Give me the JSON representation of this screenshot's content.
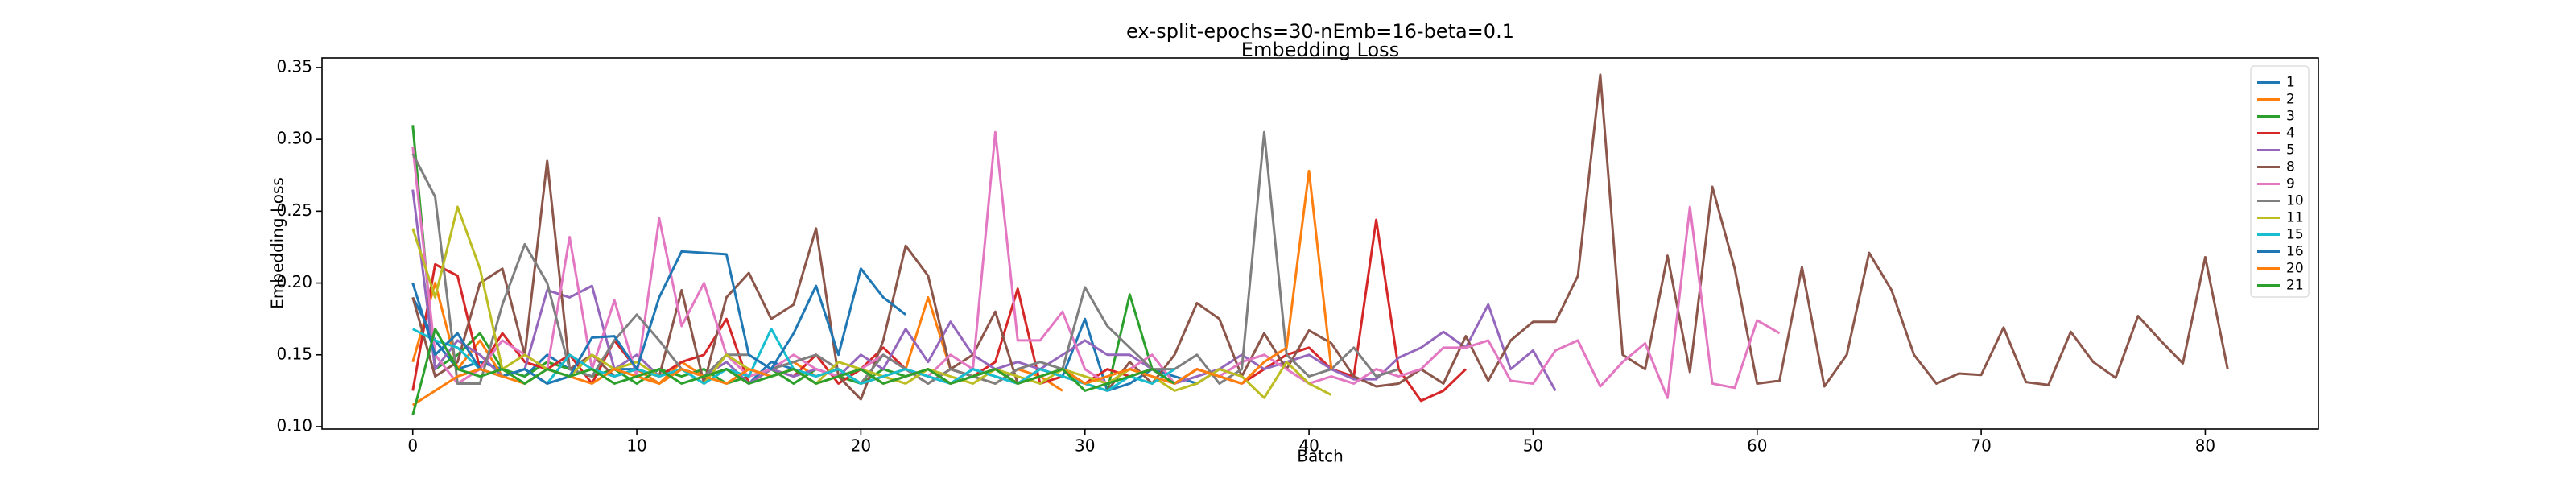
{
  "chart_data": {
    "type": "line",
    "title": "ex-split-epochs=30-nEmb=16-beta=0.1",
    "subtitle": "Embedding Loss",
    "x_label": "Batch",
    "y_label": "Embedding Loss",
    "xlim": [
      -4.05,
      85.05
    ],
    "ylim": [
      0.0983,
      0.3567
    ],
    "xticks": [
      0,
      10,
      20,
      30,
      40,
      50,
      60,
      70,
      80
    ],
    "yticks": [
      {
        "value": 0.1,
        "label": "0.10"
      },
      0.15,
      {
        "value": 0.2,
        "label": "0.20"
      },
      0.25,
      {
        "value": 0.3,
        "label": "0.30"
      },
      0.35
    ],
    "grid": false,
    "legend": "upper right",
    "series": [
      {
        "name": "1",
        "color": "#1f77b4",
        "values": [
          0.19,
          0.16,
          0.14,
          0.145,
          0.14,
          0.135,
          0.15,
          0.14,
          0.135,
          0.14,
          0.14,
          0.13,
          0.14,
          0.135,
          0.14,
          0.13,
          0.145,
          0.14,
          0.135,
          0.14,
          0.13,
          0.135,
          0.14,
          0.135,
          0.13,
          0.14,
          0.135,
          0.13,
          0.14,
          0.135,
          0.175,
          0.125,
          0.13,
          0.14,
          0.135,
          0.13,
          0.14
        ]
      },
      {
        "name": "2",
        "color": "#ff7f0e",
        "values": [
          0.145,
          0.2,
          0.14,
          0.16,
          0.135,
          0.14,
          0.13,
          0.15,
          0.14,
          0.135,
          0.14,
          0.13,
          0.145,
          0.135,
          0.14,
          0.13,
          0.14,
          0.145,
          0.135,
          0.14,
          0.13,
          0.135,
          0.14,
          0.19,
          0.14,
          0.135,
          0.13,
          0.14,
          0.135,
          0.125
        ]
      },
      {
        "name": "3",
        "color": "#2ca02c",
        "values": [
          0.31,
          0.14,
          0.15,
          0.165,
          0.14,
          0.135,
          0.145,
          0.14,
          0.135,
          0.14,
          0.13,
          0.14,
          0.135,
          0.14,
          0.13,
          0.135,
          0.14,
          0.13,
          0.14,
          0.135,
          0.13,
          0.14,
          0.135,
          0.14,
          0.13,
          0.135,
          0.14,
          0.13,
          0.135,
          0.14,
          0.13,
          0.125,
          0.192,
          0.14,
          0.13,
          0.14
        ]
      },
      {
        "name": "4",
        "color": "#d62728",
        "values": [
          0.125,
          0.213,
          0.205,
          0.14,
          0.165,
          0.145,
          0.14,
          0.15,
          0.13,
          0.16,
          0.14,
          0.135,
          0.145,
          0.15,
          0.175,
          0.13,
          0.14,
          0.135,
          0.15,
          0.13,
          0.14,
          0.155,
          0.14,
          0.13,
          0.14,
          0.135,
          0.145,
          0.196,
          0.13,
          0.135,
          0.13,
          0.14,
          0.135,
          0.14,
          0.13,
          0.14,
          0.135,
          0.13,
          0.14,
          0.15,
          0.155,
          0.14,
          0.135,
          0.244,
          0.14,
          0.118,
          0.125,
          0.14
        ]
      },
      {
        "name": "5",
        "color": "#9467bd",
        "values": [
          0.265,
          0.14,
          0.16,
          0.15,
          0.135,
          0.14,
          0.195,
          0.19,
          0.198,
          0.14,
          0.15,
          0.135,
          0.14,
          0.135,
          0.145,
          0.13,
          0.14,
          0.135,
          0.14,
          0.135,
          0.15,
          0.14,
          0.168,
          0.145,
          0.173,
          0.15,
          0.14,
          0.145,
          0.14,
          0.15,
          0.16,
          0.15,
          0.15,
          0.14,
          0.13,
          0.135,
          0.14,
          0.15,
          0.14,
          0.145,
          0.15,
          0.14,
          0.133,
          0.133,
          0.148,
          0.155,
          0.166,
          0.155,
          0.185,
          0.14,
          0.153,
          0.125
        ]
      },
      {
        "name": "8",
        "color": "#8c564b",
        "values": [
          0.19,
          0.135,
          0.145,
          0.2,
          0.21,
          0.15,
          0.285,
          0.14,
          0.15,
          0.135,
          0.14,
          0.135,
          0.195,
          0.13,
          0.19,
          0.207,
          0.175,
          0.185,
          0.238,
          0.135,
          0.119,
          0.16,
          0.226,
          0.205,
          0.14,
          0.15,
          0.18,
          0.13,
          0.14,
          0.135,
          0.13,
          0.125,
          0.145,
          0.13,
          0.15,
          0.186,
          0.175,
          0.135,
          0.165,
          0.14,
          0.167,
          0.158,
          0.135,
          0.128,
          0.13,
          0.14,
          0.13,
          0.163,
          0.132,
          0.16,
          0.173,
          0.173,
          0.205,
          0.345,
          0.15,
          0.14,
          0.219,
          0.138,
          0.267,
          0.21,
          0.13,
          0.132,
          0.211,
          0.128,
          0.15,
          0.221,
          0.195,
          0.15,
          0.13,
          0.137,
          0.136,
          0.169,
          0.131,
          0.129,
          0.166,
          0.145,
          0.134,
          0.177,
          0.16,
          0.144,
          0.218,
          0.14
        ]
      },
      {
        "name": "9",
        "color": "#e377c2",
        "values": [
          0.295,
          0.15,
          0.13,
          0.14,
          0.16,
          0.15,
          0.14,
          0.232,
          0.14,
          0.188,
          0.135,
          0.245,
          0.17,
          0.2,
          0.15,
          0.135,
          0.14,
          0.15,
          0.14,
          0.135,
          0.14,
          0.15,
          0.14,
          0.135,
          0.15,
          0.14,
          0.305,
          0.16,
          0.16,
          0.18,
          0.14,
          0.13,
          0.14,
          0.15,
          0.13,
          0.14,
          0.135,
          0.145,
          0.15,
          0.14,
          0.13,
          0.135,
          0.13,
          0.14,
          0.135,
          0.14,
          0.155,
          0.155,
          0.16,
          0.132,
          0.13,
          0.153,
          0.16,
          0.128,
          0.145,
          0.158,
          0.12,
          0.253,
          0.13,
          0.127,
          0.174,
          0.165
        ]
      },
      {
        "name": "10",
        "color": "#7f7f7f",
        "values": [
          0.29,
          0.26,
          0.13,
          0.13,
          0.185,
          0.227,
          0.2,
          0.14,
          0.135,
          0.16,
          0.178,
          0.16,
          0.14,
          0.135,
          0.15,
          0.15,
          0.14,
          0.145,
          0.15,
          0.14,
          0.13,
          0.15,
          0.14,
          0.13,
          0.14,
          0.135,
          0.13,
          0.14,
          0.145,
          0.14,
          0.197,
          0.17,
          0.155,
          0.14,
          0.14,
          0.15,
          0.13,
          0.14,
          0.305,
          0.15,
          0.135,
          0.14,
          0.155,
          0.135,
          0.14
        ]
      },
      {
        "name": "11",
        "color": "#bcbd22",
        "values": [
          0.238,
          0.19,
          0.253,
          0.21,
          0.14,
          0.15,
          0.14,
          0.135,
          0.15,
          0.14,
          0.145,
          0.135,
          0.14,
          0.13,
          0.15,
          0.14,
          0.135,
          0.14,
          0.13,
          0.145,
          0.14,
          0.135,
          0.13,
          0.14,
          0.135,
          0.13,
          0.14,
          0.135,
          0.13,
          0.14,
          0.135,
          0.13,
          0.14,
          0.135,
          0.125,
          0.13,
          0.14,
          0.135,
          0.12,
          0.145,
          0.13,
          0.122
        ]
      },
      {
        "name": "15",
        "color": "#17becf",
        "values": [
          0.168,
          0.16,
          0.155,
          0.14,
          0.135,
          0.14,
          0.13,
          0.15,
          0.14,
          0.135,
          0.14,
          0.135,
          0.14,
          0.13,
          0.14,
          0.135,
          0.168,
          0.14,
          0.135,
          0.14,
          0.13,
          0.135,
          0.14,
          0.135,
          0.13,
          0.14,
          0.135,
          0.13,
          0.14,
          0.135,
          0.13,
          0.125,
          0.135,
          0.13,
          0.14
        ]
      },
      {
        "name": "16",
        "color": "#1f77b4",
        "values": [
          0.2,
          0.15,
          0.165,
          0.14,
          0.135,
          0.14,
          0.13,
          0.135,
          0.162,
          0.163,
          0.14,
          0.19,
          0.222,
          0.221,
          0.22,
          0.15,
          0.14,
          0.165,
          0.198,
          0.15,
          0.21,
          0.19,
          0.178
        ]
      },
      {
        "name": "20",
        "color": "#ff7f0e",
        "values": [
          0.115,
          0.125,
          0.135,
          0.14,
          0.135,
          0.13,
          0.14,
          0.135,
          0.13,
          0.14,
          0.135,
          0.13,
          0.14,
          0.135,
          0.13,
          0.14,
          0.135,
          0.14,
          0.13,
          0.135,
          0.14,
          0.13,
          0.135,
          0.14,
          0.13,
          0.135,
          0.14,
          0.13,
          0.135,
          0.14,
          0.13,
          0.135,
          0.14,
          0.135,
          0.13,
          0.14,
          0.135,
          0.13,
          0.145,
          0.155,
          0.278,
          0.14
        ]
      },
      {
        "name": "21",
        "color": "#2ca02c",
        "values": [
          0.108,
          0.168,
          0.14,
          0.135,
          0.14,
          0.13,
          0.14,
          0.135,
          0.14,
          0.13,
          0.135,
          0.14,
          0.13,
          0.135,
          0.14,
          0.13,
          0.135,
          0.14,
          0.13,
          0.135,
          0.14,
          0.13,
          0.135,
          0.14,
          0.13,
          0.135,
          0.14,
          0.13,
          0.135,
          0.14,
          0.125,
          0.13,
          0.135,
          0.14,
          0.13
        ]
      }
    ]
  }
}
